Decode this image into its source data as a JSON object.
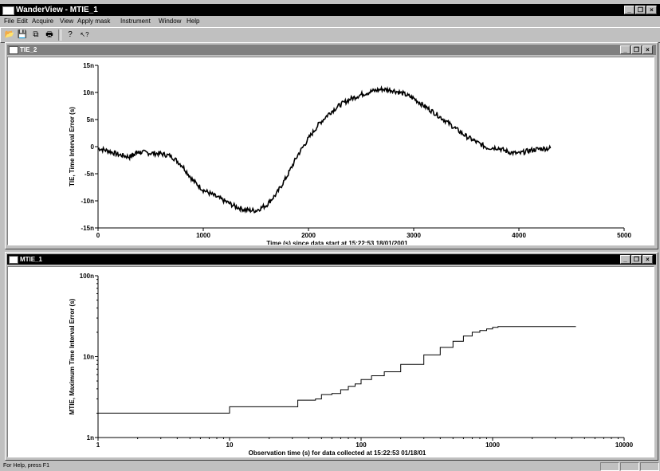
{
  "app": {
    "title": "WanderView - MTIE_1"
  },
  "menu": [
    "File",
    "Edit",
    "Acquire",
    "View",
    "Apply mask",
    "Instrument",
    "Window",
    "Help"
  ],
  "toolbar": {
    "buttons": [
      {
        "name": "open-icon",
        "glyph": "📂"
      },
      {
        "name": "save-icon",
        "glyph": "💾"
      },
      {
        "name": "copy-icon",
        "glyph": "⧉"
      },
      {
        "name": "print-icon",
        "glyph": "🖶"
      },
      {
        "name": "about-icon",
        "glyph": "?"
      },
      {
        "name": "context-help-icon",
        "glyph": "↖?"
      }
    ]
  },
  "window_buttons": {
    "minimize": "_",
    "restore": "❐",
    "close": "×"
  },
  "windows": {
    "tie": {
      "title": "TIE_2"
    },
    "mtie": {
      "title": "MTIE_1"
    }
  },
  "status": {
    "text": "For Help, press F1"
  },
  "chart_data": [
    {
      "type": "line",
      "ylabel": "TIE, Time Interval Error (s)",
      "xlabel": "Time (s) since data start at 15:22:53 18/01/2001",
      "xlim": [
        0,
        5000
      ],
      "ylim": [
        -15,
        15
      ],
      "y_unit": "ns",
      "xticks": [
        0,
        1000,
        2000,
        3000,
        4000,
        5000
      ],
      "xtick_labels": [
        "0",
        "1000",
        "2000",
        "3000",
        "4000",
        "5000"
      ],
      "yticks": [
        15,
        10,
        5,
        0,
        -5,
        -10,
        -15
      ],
      "ytick_labels": [
        "15n",
        "10n",
        "5n",
        "0",
        "-5n",
        "-10n",
        "-15n"
      ],
      "series": [
        {
          "x": [
            0,
            100,
            200,
            300,
            350,
            400,
            500,
            600,
            700,
            800,
            900,
            1000,
            1100,
            1200,
            1300,
            1400,
            1500,
            1600,
            1700,
            1800,
            1900,
            2000,
            2100,
            2200,
            2300,
            2400,
            2500,
            2600,
            2700,
            2800,
            2900,
            3000,
            3100,
            3200,
            3300,
            3400,
            3500,
            3600,
            3700,
            3800,
            3900,
            4000,
            4100,
            4200,
            4300
          ],
          "y": [
            -0.3,
            -0.8,
            -1.5,
            -1.9,
            -1.2,
            -1.0,
            -1.2,
            -1.3,
            -1.8,
            -3.5,
            -6.2,
            -8.0,
            -9.0,
            -10.0,
            -11.0,
            -11.7,
            -11.8,
            -10.8,
            -8.6,
            -5.3,
            -1.5,
            1.5,
            4.2,
            6.2,
            7.7,
            8.8,
            9.6,
            10.2,
            10.6,
            10.4,
            9.8,
            8.9,
            7.5,
            6.2,
            4.8,
            3.3,
            1.9,
            0.8,
            -0.2,
            -0.2,
            -1.0,
            -1.3,
            -0.7,
            -0.4,
            -0.3
          ]
        }
      ]
    },
    {
      "type": "line",
      "scale": "log-log",
      "ylabel": "MTIE, Maximum Time Interval Error (s)",
      "xlabel": "Observation time (s) for data collected at 15:22:53 01/18/01",
      "xlim": [
        1,
        10000
      ],
      "ylim": [
        1,
        100
      ],
      "y_unit": "ns",
      "xticks": [
        1,
        10,
        100,
        1000,
        10000
      ],
      "xtick_labels": [
        "1",
        "10",
        "100",
        "1000",
        "10000"
      ],
      "yticks": [
        100,
        10,
        1
      ],
      "ytick_labels": [
        "100n",
        "10n",
        "1n"
      ],
      "series": [
        {
          "x": [
            1,
            8.5,
            10,
            30,
            33,
            45,
            50,
            60,
            70,
            80,
            90,
            100,
            120,
            150,
            200,
            300,
            400,
            500,
            600,
            700,
            800,
            900,
            1000,
            1100,
            4300
          ],
          "y": [
            2.0,
            2.0,
            2.4,
            2.4,
            2.9,
            3.0,
            3.4,
            3.5,
            3.9,
            4.3,
            4.6,
            5.2,
            5.8,
            6.5,
            8.0,
            10.5,
            13,
            15.5,
            18,
            20,
            21,
            22,
            23,
            23.5,
            23.5
          ]
        }
      ]
    }
  ]
}
